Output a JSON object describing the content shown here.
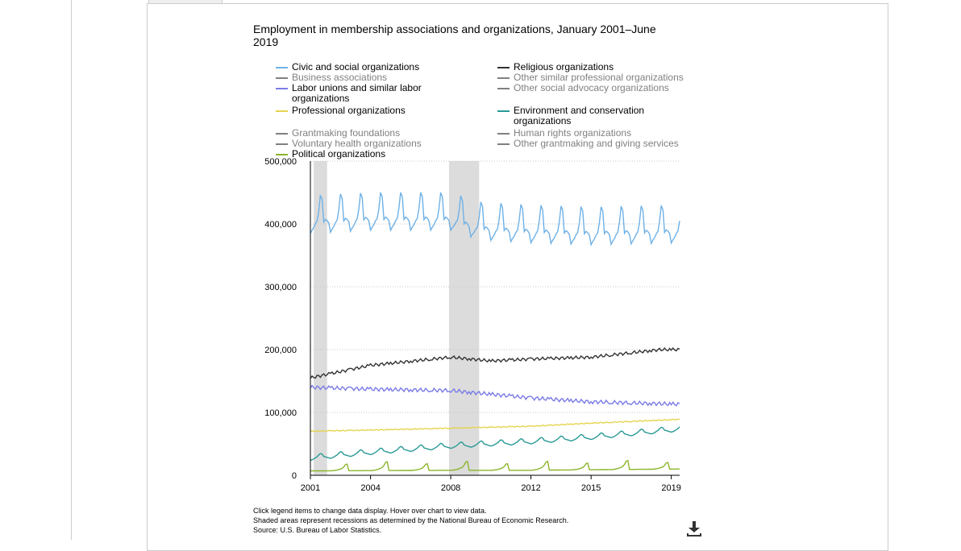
{
  "chart_data": {
    "type": "line",
    "title": "Employment in membership associations and organizations, January 2001–June 2019",
    "xlabel": "",
    "ylabel": "",
    "x_ticks": [
      "2001",
      "2004",
      "2008",
      "2012",
      "2015",
      "2019"
    ],
    "y_ticks": [
      "500,000",
      "400,000",
      "300,000",
      "200,000",
      "100,000",
      "0"
    ],
    "ylim": [
      0,
      500000
    ],
    "xlim": [
      "2001-01",
      "2019-06"
    ],
    "grid": true,
    "recessions": [
      [
        "2001-03",
        "2001-11"
      ],
      [
        "2007-12",
        "2009-06"
      ]
    ],
    "series": [
      {
        "name": "Civic and social organizations",
        "color": "#6fb1e6",
        "visible": true,
        "seasonal": "summer_spike",
        "amplitude": 45000,
        "points": [
          [
            "2001-01",
            400000
          ],
          [
            "2004-01",
            405000
          ],
          [
            "2008-01",
            405000
          ],
          [
            "2009-06",
            390000
          ],
          [
            "2012-01",
            385000
          ],
          [
            "2015-01",
            382000
          ],
          [
            "2019-06",
            385000
          ]
        ]
      },
      {
        "name": "Business associations",
        "color": "#808080",
        "visible": false,
        "points": []
      },
      {
        "name": "Labor unions and similar labor organizations",
        "color": "#7b7be8",
        "visible": true,
        "seasonal": "wiggle",
        "amplitude": 5000,
        "points": [
          [
            "2001-01",
            140000
          ],
          [
            "2004-01",
            137000
          ],
          [
            "2008-01",
            135000
          ],
          [
            "2012-01",
            123000
          ],
          [
            "2015-01",
            117000
          ],
          [
            "2019-06",
            113000
          ]
        ]
      },
      {
        "name": "Professional organizations",
        "color": "#e5d44f",
        "visible": true,
        "seasonal": "wiggle",
        "amplitude": 1200,
        "points": [
          [
            "2001-01",
            70000
          ],
          [
            "2004-01",
            72000
          ],
          [
            "2008-01",
            75000
          ],
          [
            "2012-01",
            78000
          ],
          [
            "2015-01",
            83000
          ],
          [
            "2019-06",
            89000
          ]
        ]
      },
      {
        "name": "Grantmaking foundations",
        "color": "#808080",
        "visible": false,
        "points": []
      },
      {
        "name": "Voluntary health organizations",
        "color": "#808080",
        "visible": false,
        "points": []
      },
      {
        "name": "Political organizations",
        "color": "#8bb52a",
        "visible": true,
        "seasonal": "election_spike",
        "amplitude": 14000,
        "points": [
          [
            "2001-01",
            7000
          ],
          [
            "2008-01",
            8000
          ],
          [
            "2012-01",
            8000
          ],
          [
            "2019-06",
            10000
          ]
        ]
      },
      {
        "name": "Religious organizations",
        "color": "#333333",
        "visible": true,
        "seasonal": "wiggle",
        "amplitude": 4000,
        "points": [
          [
            "2001-01",
            155000
          ],
          [
            "2004-01",
            175000
          ],
          [
            "2008-01",
            188000
          ],
          [
            "2010-01",
            182000
          ],
          [
            "2012-01",
            185000
          ],
          [
            "2015-01",
            188000
          ],
          [
            "2018-06",
            200000
          ],
          [
            "2019-06",
            200000
          ]
        ]
      },
      {
        "name": "Other similar professional organizations",
        "color": "#808080",
        "visible": false,
        "points": []
      },
      {
        "name": "Other social advocacy organizations",
        "color": "#808080",
        "visible": false,
        "points": []
      },
      {
        "name": "Environment and conservation organizations",
        "color": "#2a9a96",
        "visible": true,
        "seasonal": "summer_bump",
        "amplitude": 6000,
        "points": [
          [
            "2001-01",
            27000
          ],
          [
            "2004-01",
            36000
          ],
          [
            "2008-01",
            46000
          ],
          [
            "2012-01",
            53000
          ],
          [
            "2015-01",
            60000
          ],
          [
            "2019-06",
            73000
          ]
        ]
      },
      {
        "name": "Human rights organizations",
        "color": "#808080",
        "visible": false,
        "points": []
      },
      {
        "name": "Other grantmaking and giving services",
        "color": "#808080",
        "visible": false,
        "points": []
      }
    ]
  },
  "notes": {
    "line1": "Click legend items to change data display. Hover over chart to view data.",
    "line2": "Shaded areas represent recessions as determined by the National Bureau of Economic Research.",
    "line3": "Source: U.S. Bureau of Labor Statistics."
  },
  "icons": {
    "download": "download-icon"
  }
}
